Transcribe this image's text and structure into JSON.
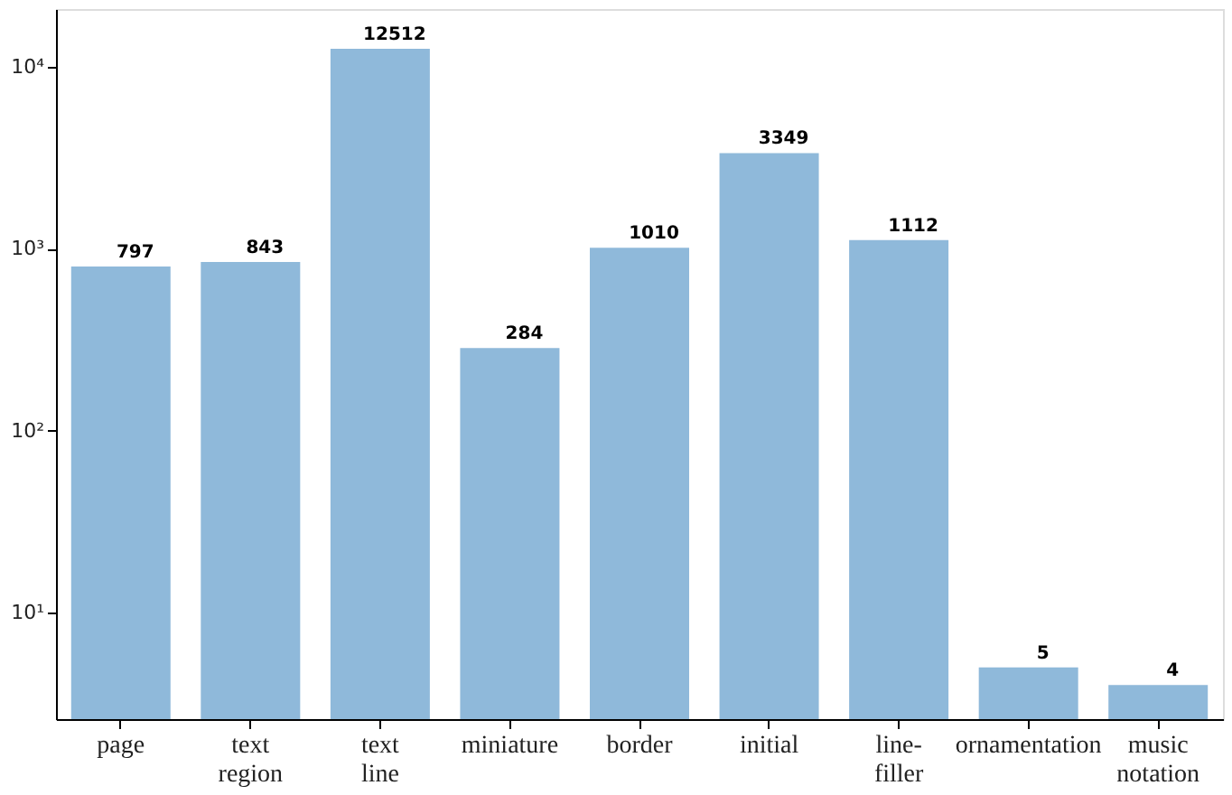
{
  "chart_data": {
    "type": "bar",
    "categories": [
      "page",
      "text\nregion",
      "text\nline",
      "miniature",
      "border",
      "initial",
      "line-\nfiller",
      "ornamentation",
      "music\nnotation"
    ],
    "values": [
      797,
      843,
      12512,
      284,
      1010,
      3349,
      1112,
      5,
      4
    ],
    "color": "#8fb9da",
    "log": true,
    "ylim": [
      2.6,
      20700
    ],
    "yticks": [
      {
        "value": 10,
        "label": "10¹"
      },
      {
        "value": 100,
        "label": "10²"
      },
      {
        "value": 1000,
        "label": "10³"
      },
      {
        "value": 10000,
        "label": "10⁴"
      }
    ],
    "data_labels": true,
    "grid": false
  }
}
